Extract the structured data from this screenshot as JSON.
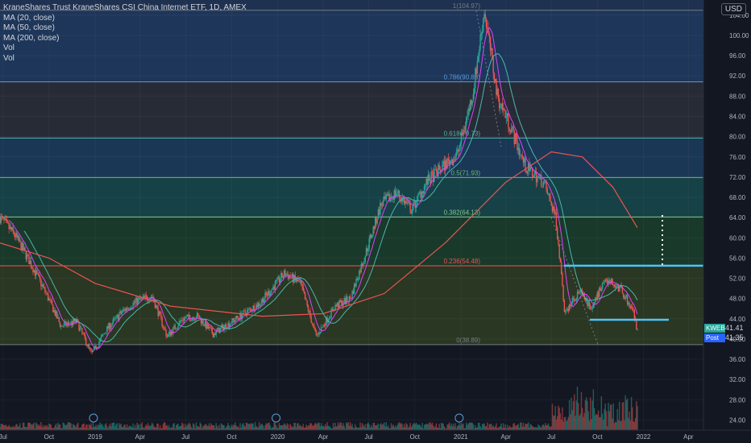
{
  "window": {
    "title": "KraneShares Trust KraneShares CSI China Internet ETF, 1D, AMEX"
  },
  "legend": {
    "title": "KraneShares Trust KraneShares CSI China Internet ETF, 1D, AMEX",
    "items": [
      "MA (20, close)",
      "MA (50, close)",
      "MA (200, close)",
      "Vol",
      "Vol"
    ]
  },
  "currency_button": "USD",
  "price_tags": {
    "symbol": "KWEB",
    "symbol_price": "41.41",
    "post": "Post",
    "post_price": "41.35"
  },
  "colors": {
    "background": "#131722",
    "candle_up": "#26a69a",
    "candle_down": "#ef5350",
    "ma20": "#e040fb",
    "ma50": "#4db6ac",
    "ma200": "#ef5350",
    "support": "#4fc3f7"
  },
  "chart_data": {
    "type": "candlestick",
    "y_axis": {
      "min": 22,
      "max": 107,
      "ticks": [
        24,
        28,
        32,
        36,
        40,
        44,
        48,
        52,
        56,
        60,
        64,
        68,
        72,
        76,
        80,
        84,
        88,
        92,
        96,
        100,
        104
      ]
    },
    "x_axis": {
      "labels": [
        "Jul",
        "Oct",
        "2019",
        "Apr",
        "Jul",
        "Oct",
        "2020",
        "Apr",
        "Jul",
        "Oct",
        "2021",
        "Apr",
        "Jul",
        "Oct",
        "2022",
        "Apr"
      ]
    },
    "fibonacci": [
      {
        "level": "1",
        "price": 104.97,
        "label": "1(104.97)"
      },
      {
        "level": "0.786",
        "price": 90.83,
        "label": "0.786(90.83)"
      },
      {
        "level": "0.618",
        "price": 79.73,
        "label": "0.618(79.73)"
      },
      {
        "level": "0.5",
        "price": 71.93,
        "label": "0.5(71.93)"
      },
      {
        "level": "0.382",
        "price": 64.13,
        "label": "0.382(64.13)"
      },
      {
        "level": "0.236",
        "price": 54.48,
        "label": "0.236(54.48)"
      },
      {
        "level": "0",
        "price": 38.89,
        "label": "0(38.89)"
      }
    ],
    "support_lines": [
      54.5,
      43.8
    ],
    "price_series": [
      [
        "2018-06-25",
        64.0
      ],
      [
        "2018-07-25",
        60.5
      ],
      [
        "2018-08-25",
        55.0
      ],
      [
        "2018-09-25",
        49.0
      ],
      [
        "2018-10-25",
        42.5
      ],
      [
        "2018-11-25",
        43.5
      ],
      [
        "2018-12-25",
        37.0
      ],
      [
        "2019-01-25",
        42.0
      ],
      [
        "2019-02-25",
        45.5
      ],
      [
        "2019-03-25",
        47.5
      ],
      [
        "2019-04-25",
        48.5
      ],
      [
        "2019-05-25",
        40.5
      ],
      [
        "2019-06-25",
        44.0
      ],
      [
        "2019-07-25",
        44.5
      ],
      [
        "2019-08-25",
        41.0
      ],
      [
        "2019-09-25",
        43.0
      ],
      [
        "2019-10-25",
        45.0
      ],
      [
        "2019-11-25",
        47.0
      ],
      [
        "2019-12-25",
        50.5
      ],
      [
        "2020-01-15",
        53.0
      ],
      [
        "2020-02-15",
        51.0
      ],
      [
        "2020-03-18",
        40.5
      ],
      [
        "2020-04-25",
        46.5
      ],
      [
        "2020-05-25",
        48.0
      ],
      [
        "2020-06-25",
        57.0
      ],
      [
        "2020-07-25",
        66.5
      ],
      [
        "2020-08-25",
        69.0
      ],
      [
        "2020-09-25",
        65.5
      ],
      [
        "2020-10-25",
        71.0
      ],
      [
        "2020-11-25",
        74.0
      ],
      [
        "2020-12-25",
        76.5
      ],
      [
        "2021-01-25",
        88.5
      ],
      [
        "2021-02-17",
        104.97
      ],
      [
        "2021-03-15",
        88.0
      ],
      [
        "2021-04-10",
        82.0
      ],
      [
        "2021-05-10",
        74.0
      ],
      [
        "2021-06-15",
        71.0
      ],
      [
        "2021-07-10",
        64.0
      ],
      [
        "2021-07-28",
        45.0
      ],
      [
        "2021-08-25",
        49.5
      ],
      [
        "2021-09-20",
        46.0
      ],
      [
        "2021-10-15",
        52.0
      ],
      [
        "2021-11-15",
        50.0
      ],
      [
        "2021-12-10",
        46.0
      ],
      [
        "2021-12-20",
        41.41
      ]
    ],
    "ma_200": [
      [
        "2018-06-25",
        59.0
      ],
      [
        "2018-10-01",
        56.0
      ],
      [
        "2019-01-01",
        51.0
      ],
      [
        "2019-06-01",
        46.5
      ],
      [
        "2019-12-01",
        44.5
      ],
      [
        "2020-04-01",
        45.0
      ],
      [
        "2020-08-01",
        49.0
      ],
      [
        "2020-12-01",
        59.0
      ],
      [
        "2021-04-01",
        71.0
      ],
      [
        "2021-07-01",
        77.0
      ],
      [
        "2021-09-01",
        76.0
      ],
      [
        "2021-11-01",
        70.0
      ],
      [
        "2021-12-20",
        62.0
      ]
    ]
  }
}
